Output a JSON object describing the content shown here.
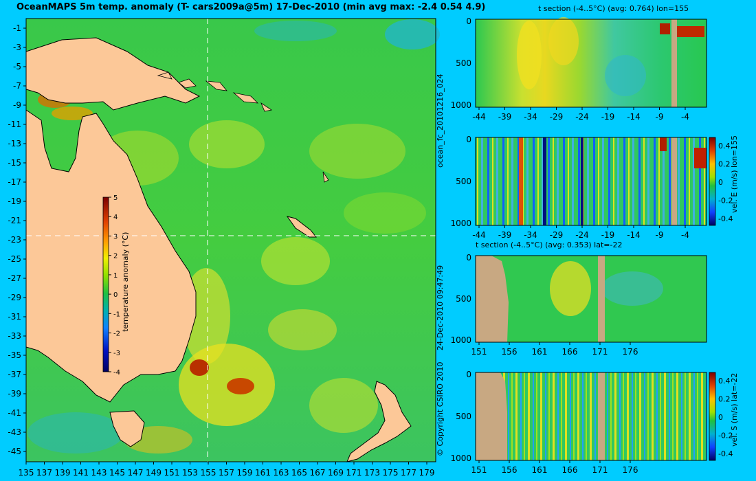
{
  "title": "OceanMAPS 5m temp. anomaly (T- cars2009a@5m) 17-Dec-2010 (min avg max: -2.4 0.54 4.9)",
  "map": {
    "lat_labels": [
      "-1",
      "-3",
      "-5",
      "-7",
      "-9",
      "-11",
      "-13",
      "-15",
      "-17",
      "-19",
      "-21",
      "-23",
      "-25",
      "-27",
      "-29",
      "-31",
      "-33",
      "-35",
      "-37",
      "-39",
      "-41",
      "-43",
      "-45"
    ],
    "lon_labels": [
      "135",
      "137",
      "139",
      "141",
      "143",
      "145",
      "147",
      "149",
      "151",
      "153",
      "155",
      "157",
      "159",
      "161",
      "163",
      "165",
      "167",
      "169",
      "171",
      "173",
      "175",
      "177",
      "179"
    ],
    "colorbar": {
      "label": "temperature anomaly (°C)",
      "ticks": [
        "5",
        "4",
        "3",
        "2",
        "1",
        "0",
        "-1",
        "-2",
        "-3",
        "-4"
      ]
    }
  },
  "side_labels": {
    "run_id": "ocean_fc_20101216_024",
    "timestamp": "24-Dec-2010 09:47:49",
    "copyright": "© Copyright CSIRO 2010"
  },
  "panels": [
    {
      "title": "t section (-4..5°C) (avg: 0.764) lon=155",
      "y_ticks": [
        "0",
        "500",
        "1000"
      ],
      "x_ticks": [
        "-44",
        "-39",
        "-34",
        "-29",
        "-24",
        "-19",
        "-14",
        "-9",
        "-4"
      ]
    },
    {
      "title": "",
      "y_ticks": [
        "0",
        "500",
        "1000"
      ],
      "x_ticks": [
        "-44",
        "-39",
        "-34",
        "-29",
        "-24",
        "-19",
        "-14",
        "-9",
        "-4"
      ],
      "colorbar_label": "vel. E (m/s) lon=155",
      "colorbar_ticks": [
        "0.4",
        "0.2",
        "0",
        "-0.2",
        "-0.4"
      ]
    },
    {
      "title": "t section (-4..5°C) (avg: 0.353) lat=-22",
      "y_ticks": [
        "0",
        "500",
        "1000"
      ],
      "x_ticks": [
        "151",
        "156",
        "161",
        "166",
        "171",
        "176"
      ]
    },
    {
      "title": "",
      "y_ticks": [
        "0",
        "500",
        "1000"
      ],
      "x_ticks": [
        "151",
        "156",
        "161",
        "166",
        "171",
        "176"
      ],
      "colorbar_label": "vel. S (m/s) lat=-22",
      "colorbar_ticks": [
        "0.4",
        "0.2",
        "0",
        "-0.2",
        "-0.4"
      ]
    }
  ],
  "colors": {
    "background": "#00ccff",
    "land": "#fcc898",
    "section_land": "#c8a882",
    "ocean_mid": "#22c95a"
  }
}
